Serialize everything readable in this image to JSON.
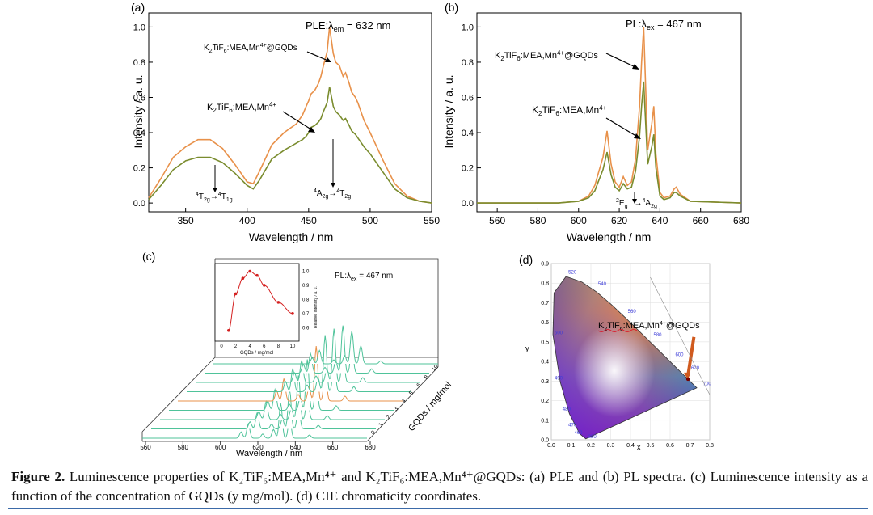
{
  "panels": {
    "a": {
      "label": "(a)",
      "title_prefix": "PLE:λ",
      "title_sub": "em",
      "title_suffix": " = 632 nm",
      "xlabel": "Wavelength / nm",
      "ylabel": "Intensity / a. u.",
      "legend_gqds": "K2TiF6:MEA,Mn4+@GQDs",
      "legend_plain": "K2TiF6:MEA,Mn4+",
      "transition_1": "4T2g→4T1g",
      "transition_2": "4A2g→4T2g"
    },
    "b": {
      "label": "(b)",
      "title_prefix": "PL:λ",
      "title_sub": "ex",
      "title_suffix": " = 467 nm",
      "xlabel": "Wavelength / nm",
      "ylabel": "Intensity / a. u.",
      "legend_gqds": "K2TiF6:MEA,Mn4+@GQDs",
      "legend_plain": "K2TiF6:MEA,Mn4+",
      "transition": "2Eg→4A2g"
    },
    "c": {
      "label": "(c)",
      "title": "PL:λex = 467 nm",
      "xlabel": "Wavelength / nm",
      "zlabel": "GQDs / mg/mol",
      "inset_xlabel": "GQDs / mg/mol",
      "inset_ylabel": "Relative Intensity / a. u.",
      "x_ticks": [
        "560",
        "580",
        "600",
        "620",
        "640",
        "660",
        "680"
      ],
      "z_ticks": [
        "0",
        "1",
        "2",
        "3",
        "4",
        "5",
        "6",
        "8",
        "10"
      ],
      "inset_x_ticks": [
        "0",
        "2",
        "4",
        "6",
        "8",
        "10"
      ],
      "inset_y_ticks": [
        "0.6",
        "0.7",
        "0.8",
        "0.9",
        "1.0"
      ]
    },
    "d": {
      "label": "(d)",
      "annotation": "K2TiF6:MEA,Mn4+@GQDs",
      "xlabel": "x",
      "ylabel": "y",
      "locus_labels": [
        "520",
        "540",
        "560",
        "580",
        "600",
        "620",
        "700",
        "500",
        "490",
        "480",
        "470",
        "460",
        "380"
      ],
      "x_ticks": [
        "0.0",
        "0.1",
        "0.2",
        "0.3",
        "0.4",
        "0.5",
        "0.6",
        "0.7",
        "0.8"
      ],
      "y_ticks": [
        "0.0",
        "0.1",
        "0.2",
        "0.3",
        "0.4",
        "0.5",
        "0.6",
        "0.7",
        "0.8",
        "0.9"
      ]
    }
  },
  "chart_data": [
    {
      "type": "line",
      "panel": "a",
      "title": "PLE:λem = 632 nm",
      "xlabel": "Wavelength / nm",
      "ylabel": "Intensity / a. u.",
      "xlim": [
        320,
        550
      ],
      "ylim": [
        -0.05,
        1.08
      ],
      "x_ticks": [
        350,
        400,
        450,
        500,
        550
      ],
      "y_ticks": [
        0.0,
        0.2,
        0.4,
        0.6,
        0.8,
        1.0
      ],
      "series": [
        {
          "name": "K2TiF6:MEA,Mn4+@GQDs",
          "color": "#e8914a",
          "x": [
            320,
            330,
            340,
            350,
            360,
            370,
            380,
            390,
            400,
            405,
            410,
            420,
            430,
            440,
            445,
            448,
            450,
            452,
            455,
            458,
            460,
            462,
            465,
            467,
            470,
            472,
            475,
            478,
            480,
            483,
            485,
            488,
            490,
            495,
            500,
            510,
            520,
            530,
            540,
            550
          ],
          "y": [
            0.03,
            0.14,
            0.26,
            0.32,
            0.36,
            0.36,
            0.31,
            0.22,
            0.12,
            0.11,
            0.18,
            0.33,
            0.4,
            0.45,
            0.5,
            0.55,
            0.58,
            0.62,
            0.64,
            0.68,
            0.72,
            0.78,
            0.86,
            1.0,
            0.85,
            0.8,
            0.78,
            0.72,
            0.74,
            0.68,
            0.63,
            0.6,
            0.57,
            0.47,
            0.4,
            0.25,
            0.11,
            0.04,
            0.01,
            0.0
          ]
        },
        {
          "name": "K2TiF6:MEA,Mn4+",
          "color": "#7a8c2e",
          "x": [
            320,
            330,
            340,
            350,
            360,
            370,
            380,
            390,
            400,
            405,
            410,
            420,
            430,
            440,
            445,
            448,
            450,
            452,
            455,
            458,
            460,
            462,
            465,
            467,
            470,
            472,
            475,
            478,
            480,
            483,
            485,
            488,
            490,
            495,
            500,
            510,
            520,
            530,
            540,
            550
          ],
          "y": [
            0.02,
            0.1,
            0.19,
            0.24,
            0.26,
            0.26,
            0.23,
            0.17,
            0.1,
            0.08,
            0.13,
            0.25,
            0.3,
            0.34,
            0.36,
            0.38,
            0.4,
            0.43,
            0.44,
            0.46,
            0.48,
            0.52,
            0.57,
            0.66,
            0.55,
            0.52,
            0.5,
            0.47,
            0.48,
            0.44,
            0.41,
            0.39,
            0.37,
            0.32,
            0.28,
            0.18,
            0.08,
            0.03,
            0.01,
            0.0
          ]
        }
      ]
    },
    {
      "type": "line",
      "panel": "b",
      "title": "PL:λex = 467 nm",
      "xlabel": "Wavelength / nm",
      "ylabel": "Intensity / a. u.",
      "xlim": [
        550,
        680
      ],
      "ylim": [
        -0.05,
        1.08
      ],
      "x_ticks": [
        560,
        580,
        600,
        620,
        640,
        660,
        680
      ],
      "y_ticks": [
        0.0,
        0.2,
        0.4,
        0.6,
        0.8,
        1.0
      ],
      "series": [
        {
          "name": "K2TiF6:MEA,Mn4+@GQDs",
          "color": "#e8914a",
          "x": [
            550,
            590,
            600,
            605,
            608,
            610,
            612,
            614,
            616,
            618,
            620,
            622,
            624,
            626,
            628,
            630,
            631,
            632,
            633,
            634,
            636,
            637,
            638,
            640,
            642,
            645,
            647,
            648,
            650,
            655,
            680
          ],
          "y": [
            0.0,
            0.0,
            0.01,
            0.04,
            0.1,
            0.18,
            0.26,
            0.41,
            0.22,
            0.12,
            0.09,
            0.15,
            0.1,
            0.12,
            0.25,
            0.55,
            0.8,
            1.0,
            0.65,
            0.3,
            0.45,
            0.55,
            0.28,
            0.06,
            0.03,
            0.04,
            0.08,
            0.09,
            0.05,
            0.01,
            0.0
          ]
        },
        {
          "name": "K2TiF6:MEA,Mn4+",
          "color": "#7a8c2e",
          "x": [
            550,
            590,
            600,
            605,
            608,
            610,
            612,
            614,
            616,
            618,
            620,
            622,
            624,
            626,
            628,
            630,
            631,
            632,
            633,
            634,
            636,
            637,
            638,
            640,
            642,
            645,
            647,
            648,
            650,
            655,
            680
          ],
          "y": [
            0.0,
            0.0,
            0.01,
            0.03,
            0.07,
            0.13,
            0.19,
            0.29,
            0.16,
            0.09,
            0.07,
            0.11,
            0.08,
            0.09,
            0.18,
            0.38,
            0.55,
            0.69,
            0.45,
            0.22,
            0.32,
            0.39,
            0.2,
            0.04,
            0.02,
            0.03,
            0.06,
            0.06,
            0.04,
            0.01,
            0.0
          ]
        }
      ]
    },
    {
      "type": "line",
      "panel": "c-inset",
      "title": "",
      "xlabel": "GQDs / mg/mol",
      "ylabel": "Relative Intensity / a. u.",
      "xlim": [
        0,
        10
      ],
      "ylim": [
        0.55,
        1.02
      ],
      "series": [
        {
          "name": "Relative intensity",
          "color": "#d42020",
          "x": [
            1,
            2,
            3,
            4,
            5,
            6,
            8,
            10
          ],
          "y": [
            0.58,
            0.84,
            0.95,
            1.0,
            0.97,
            0.9,
            0.78,
            0.7
          ]
        }
      ]
    },
    {
      "type": "line",
      "panel": "c",
      "title": "PL:λex = 467 nm",
      "xlabel": "Wavelength / nm",
      "zlabel": "GQDs / mg/mol",
      "xlim": [
        555,
        680
      ],
      "series_z": [
        0,
        1,
        2,
        3,
        4,
        5,
        6,
        8,
        10
      ],
      "highlight_index": 4,
      "peak_x": [
        610,
        614,
        622,
        628,
        632,
        637,
        648
      ],
      "peak_y": [
        0.18,
        0.41,
        0.12,
        0.25,
        1.0,
        0.55,
        0.09
      ],
      "relative_scale": [
        0.58,
        0.84,
        0.95,
        1.0,
        0.97,
        0.9,
        0.78,
        0.7,
        0.62
      ]
    },
    {
      "type": "scatter",
      "panel": "d",
      "title": "CIE chromaticity",
      "xlabel": "x",
      "ylabel": "y",
      "xlim": [
        0,
        0.8
      ],
      "ylim": [
        0,
        0.9
      ],
      "points": [
        {
          "name": "K2TiF6:MEA,Mn4+@GQDs",
          "x": 0.69,
          "y": 0.31
        }
      ],
      "locus": {
        "x": [
          0.1741,
          0.144,
          0.0913,
          0.0454,
          0.0082,
          0.0139,
          0.0743,
          0.1547,
          0.2296,
          0.3016,
          0.3731,
          0.4441,
          0.5125,
          0.5752,
          0.627,
          0.6658,
          0.6915,
          0.7079,
          0.719,
          0.7347
        ],
        "y": [
          0.005,
          0.0297,
          0.1327,
          0.295,
          0.5384,
          0.7502,
          0.8338,
          0.8059,
          0.7543,
          0.6923,
          0.6245,
          0.5547,
          0.4866,
          0.4242,
          0.3725,
          0.334,
          0.3083,
          0.292,
          0.2809,
          0.2653
        ]
      }
    }
  ],
  "caption": {
    "figure_label": "Figure 2.",
    "text": " Luminescence properties of K₂TiF₆:MEA,Mn⁴⁺ and K₂TiF₆:MEA,Mn⁴⁺@GQDs: (a) PLE and (b) PL spectra. (c) Luminescence intensity as a function of the concentration of GQDs (y mg/mol). (d) CIE chromaticity coordinates."
  }
}
